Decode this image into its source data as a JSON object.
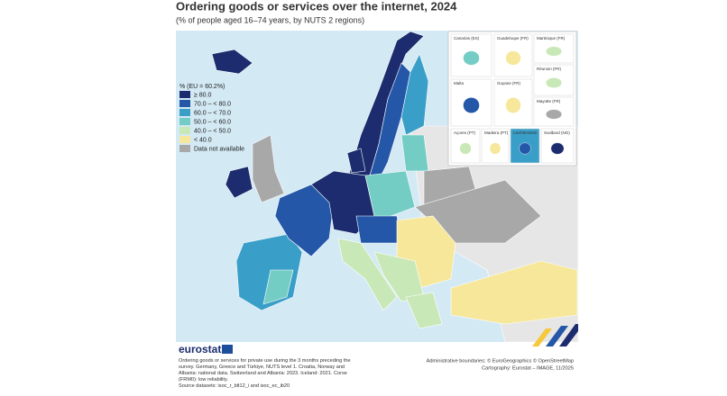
{
  "header": {
    "title": "Ordering goods or services over the internet, 2024",
    "subtitle": "(% of people aged 16–74 years, by NUTS 2 regions)"
  },
  "legend": {
    "title": "% (EU = 60.2%)",
    "items": [
      {
        "label": "≥ 80.0",
        "color": "#1c2c6e"
      },
      {
        "label": "70.0 – < 80.0",
        "color": "#2457a8"
      },
      {
        "label": "60.0 – < 70.0",
        "color": "#3a9fc8"
      },
      {
        "label": "50.0 – < 60.0",
        "color": "#74cdc4"
      },
      {
        "label": "40.0 – < 50.0",
        "color": "#c9e8b8"
      },
      {
        "label": "< 40.0",
        "color": "#f6e79a"
      }
    ],
    "not_available": {
      "label": "Data not available",
      "color": "#a8a8a8"
    }
  },
  "insets": [
    "Canarias (ES)",
    "Guadeloupe (FR)",
    "Martinique (FR)",
    "Réunion (FR)",
    "Malta",
    "Guyane (FR)",
    "Mayotte (FR)",
    "Açores (PT)",
    "Madeira (PT)",
    "Liechtenstein",
    "Svalbard (NO)"
  ],
  "footer": {
    "logo": "eurostat",
    "note": "Ordering goods or services for private use during the 3 months preceding the survey. Germany, Greece and Türkiye, NUTS level 1. Croatia, Norway and Albania: national data. Switzerland and Albania: 2023. Iceland: 2021. Corse (FRM0): low reliability.",
    "source": "Source datasets: isoc_r_blt12_i and isoc_ec_ib20",
    "boundaries": "Administrative boundaries: © EuroGeographics © OpenStreetMap",
    "cartography": "Cartography: Eurostat – IMAGE, 11/2025"
  }
}
